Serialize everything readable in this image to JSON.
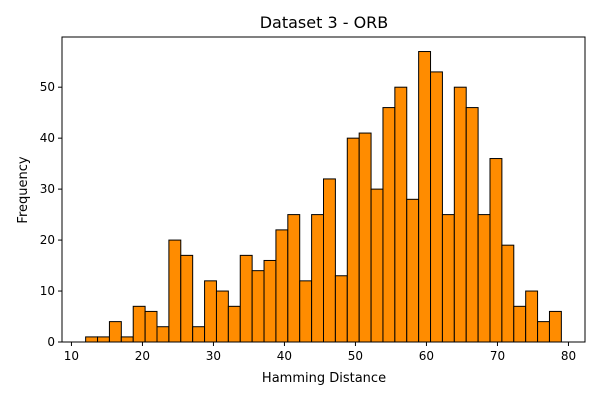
{
  "chart_data": {
    "type": "bar",
    "title": "Dataset 3 - ORB",
    "xlabel": "Hamming Distance",
    "ylabel": "Frequency",
    "xlim": [
      8.67,
      82.33
    ],
    "ylim": [
      0,
      59.85
    ],
    "grid": false,
    "bar_color": "#ff8c00",
    "edge_color": "#000000",
    "bin_width": 1.675,
    "bins_start": [
      12.0,
      13.675,
      15.35,
      17.025,
      18.7,
      20.375,
      22.05,
      23.725,
      25.4,
      27.075,
      28.75,
      30.425,
      32.1,
      33.775,
      35.45,
      37.125,
      38.8,
      40.475,
      42.15,
      43.825,
      45.5,
      47.175,
      48.85,
      50.525,
      52.2,
      53.875,
      55.55,
      57.225,
      58.9,
      60.575,
      62.25,
      63.925,
      65.6,
      67.275,
      68.95,
      70.625,
      72.3,
      73.975,
      75.65,
      77.325
    ],
    "values": [
      1,
      1,
      4,
      1,
      7,
      6,
      3,
      20,
      17,
      3,
      12,
      10,
      7,
      17,
      14,
      16,
      22,
      25,
      12,
      25,
      32,
      13,
      40,
      41,
      30,
      46,
      50,
      28,
      57,
      53,
      25,
      50,
      46,
      25,
      36,
      19,
      7,
      10,
      4,
      6
    ],
    "x_ticks": [
      "10",
      "20",
      "30",
      "40",
      "50",
      "60",
      "70",
      "80"
    ],
    "y_ticks": [
      "0",
      "10",
      "20",
      "30",
      "40",
      "50"
    ]
  }
}
